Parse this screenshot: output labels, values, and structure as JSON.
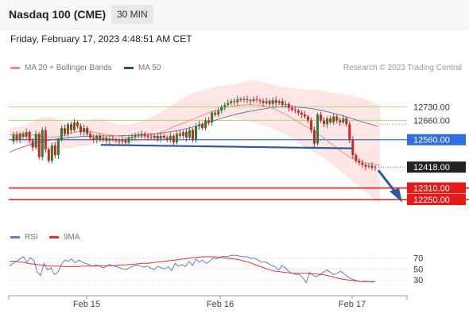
{
  "header": {
    "instrument": "Nasdaq 100 (CME)",
    "timeframe": "30 MIN"
  },
  "datetime": "Friday, February 17, 2023 4:48:51 AM CET",
  "credit": "Research © 2023 Trading Central",
  "legend_main": [
    {
      "label": "MA 20 + Bollinger Bands",
      "color": "#f28b82"
    },
    {
      "label": "MA 50",
      "color": "#2c4f8c"
    }
  ],
  "legend_rsi": [
    {
      "label": "RSI",
      "color": "#5b7fd4"
    },
    {
      "label": "9MA",
      "color": "#e83030"
    }
  ],
  "colors": {
    "bull_candle": "#2e7d32",
    "bear_candle": "#c62828",
    "resistance": "#b5d98a",
    "pivot": "#2f6fe0",
    "support": "#e31b1b",
    "last_price": "#222222",
    "arrow": "#2c5aa0"
  },
  "chart_data": {
    "type": "line",
    "series_note": "",
    "xlabel": "",
    "ylabel": "",
    "x_ticks": [
      "Feb 15",
      "Feb 16",
      "Feb 17"
    ],
    "ylim": [
      12180,
      12880
    ],
    "levels": [
      {
        "value": 12730,
        "label": "12730.00",
        "kind": "resistance"
      },
      {
        "value": 12660,
        "label": "12660.00",
        "kind": "resistance"
      },
      {
        "value": 12560,
        "label": "12560.00",
        "kind": "pivot"
      },
      {
        "value": 12418,
        "label": "12418.00",
        "kind": "last"
      },
      {
        "value": 12310,
        "label": "12310.00",
        "kind": "support"
      },
      {
        "value": 12250,
        "label": "12250.00",
        "kind": "support"
      }
    ],
    "price": [
      12550,
      12585,
      12560,
      12590,
      12575,
      12600,
      12555,
      12520,
      12590,
      12470,
      12610,
      12510,
      12450,
      12530,
      12480,
      12560,
      12620,
      12590,
      12640,
      12610,
      12650,
      12630,
      12600,
      12620,
      12590,
      12570,
      12560,
      12580,
      12560,
      12570,
      12555,
      12565,
      12560,
      12555,
      12550,
      12560,
      12545,
      12570,
      12575,
      12585,
      12580,
      12590,
      12580,
      12575,
      12570,
      12580,
      12565,
      12580,
      12570,
      12560,
      12580,
      12545,
      12590,
      12580,
      12600,
      12570,
      12610,
      12560,
      12630,
      12640,
      12620,
      12660,
      12650,
      12700,
      12690,
      12710,
      12730,
      12740,
      12750,
      12760,
      12755,
      12770,
      12765,
      12770,
      12765,
      12760,
      12770,
      12765,
      12760,
      12750,
      12760,
      12745,
      12765,
      12750,
      12760,
      12740,
      12745,
      12725,
      12715,
      12710,
      12700,
      12690,
      12680,
      12660,
      12610,
      12540,
      12690,
      12660,
      12640,
      12670,
      12650,
      12680,
      12660,
      12650,
      12670,
      12640,
      12560,
      12480,
      12450,
      12440,
      12430,
      12420,
      12425,
      12415,
      12418
    ],
    "ma20": [
      12585,
      12588,
      12590,
      12588,
      12585,
      12580,
      12575,
      12572,
      12575,
      12580,
      12590,
      12598,
      12603,
      12604,
      12601,
      12596,
      12590,
      12585,
      12580,
      12576,
      12573,
      12572,
      12574,
      12578,
      12584,
      12592,
      12602,
      12614,
      12628,
      12640,
      12652,
      12664,
      12676,
      12688,
      12700,
      12710,
      12720,
      12728,
      12734,
      12738,
      12740,
      12741,
      12740,
      12736,
      12730,
      12720,
      12706,
      12690,
      12672,
      12654,
      12636,
      12618,
      12600,
      12580,
      12555,
      12532,
      12510,
      12488,
      12468,
      12454,
      12445,
      12438,
      12432,
      12428
    ],
    "ma50": [
      12495,
      12510,
      12522,
      12533,
      12543,
      12551,
      12558,
      12563,
      12567,
      12571,
      12574,
      12577,
      12578,
      12579,
      12580,
      12580,
      12580,
      12581,
      12582,
      12584,
      12586,
      12589,
      12592,
      12596,
      12601,
      12607,
      12614,
      12622,
      12631,
      12641,
      12652,
      12663,
      12674,
      12684,
      12693,
      12701,
      12708,
      12714,
      12720,
      12725,
      12729,
      12731,
      12731,
      12729,
      12726,
      12722,
      12716,
      12709,
      12701,
      12692,
      12682,
      12671,
      12660,
      12649,
      12639,
      12630
    ],
    "bb_upper": [
      12620,
      12625,
      12632,
      12650,
      12670,
      12680,
      12675,
      12660,
      12645,
      12640,
      12648,
      12660,
      12670,
      12668,
      12650,
      12640,
      12638,
      12640,
      12650,
      12662,
      12680,
      12700,
      12720,
      12745,
      12770,
      12790,
      12805,
      12815,
      12825,
      12835,
      12840,
      12845,
      12850,
      12860,
      12870,
      12865,
      12855,
      12845,
      12835,
      12830,
      12825,
      12822,
      12820,
      12820,
      12815,
      12805,
      12800,
      12795,
      12790,
      12780,
      12770,
      12755,
      12735
    ],
    "bb_lower": [
      12560,
      12550,
      12540,
      12520,
      12505,
      12495,
      12500,
      12510,
      12515,
      12520,
      12525,
      12530,
      12540,
      12548,
      12545,
      12540,
      12538,
      12540,
      12545,
      12550,
      12553,
      12555,
      12560,
      12565,
      12570,
      12580,
      12600,
      12620,
      12640,
      12660,
      12670,
      12675,
      12670,
      12660,
      12650,
      12640,
      12630,
      12615,
      12600,
      12580,
      12560,
      12530,
      12510,
      12490,
      12470,
      12440,
      12410,
      12380,
      12350,
      12320,
      12290,
      12255,
      12225
    ],
    "rsi": {
      "levels": [
        70,
        50,
        30
      ],
      "ylim": [
        10,
        85
      ],
      "rsi": [
        55,
        60,
        64,
        68,
        72,
        62,
        70,
        66,
        45,
        38,
        60,
        48,
        52,
        40,
        44,
        58,
        66,
        64,
        68,
        61,
        66,
        63,
        60,
        58,
        55,
        57,
        56,
        52,
        54,
        58,
        56,
        54,
        52,
        50,
        49,
        53,
        55,
        57,
        55,
        53,
        55,
        51,
        49,
        55,
        52,
        50,
        54,
        47,
        60,
        55,
        58,
        54,
        64,
        56,
        68,
        62,
        66,
        60,
        64,
        70,
        68,
        71,
        73,
        72,
        74,
        75,
        74,
        73,
        72,
        72,
        69,
        70,
        66,
        62,
        63,
        60,
        56,
        54,
        48,
        56,
        52,
        45,
        42,
        40,
        40,
        34,
        25,
        44,
        38,
        36,
        40,
        44,
        48,
        44,
        40,
        42,
        46,
        41,
        36,
        32,
        30,
        28,
        27,
        28,
        27,
        26,
        27
      ],
      "ma9": [
        64,
        64,
        63,
        62,
        60,
        59,
        58,
        57,
        56,
        55,
        55,
        55,
        54,
        54,
        54,
        54,
        55,
        55,
        55,
        55,
        56,
        56,
        56,
        56,
        57,
        57,
        58,
        58,
        59,
        60,
        60,
        61,
        62,
        63,
        64,
        65,
        66,
        67,
        68,
        69,
        70,
        71,
        72,
        72,
        72,
        72,
        71,
        70,
        69,
        68,
        67,
        65,
        63,
        60,
        57,
        54,
        51,
        48,
        46,
        45,
        44,
        43,
        42,
        42,
        42,
        42,
        41,
        41,
        40,
        39,
        37,
        35,
        33,
        31,
        30,
        29,
        28,
        27,
        27,
        27,
        27
      ]
    }
  }
}
